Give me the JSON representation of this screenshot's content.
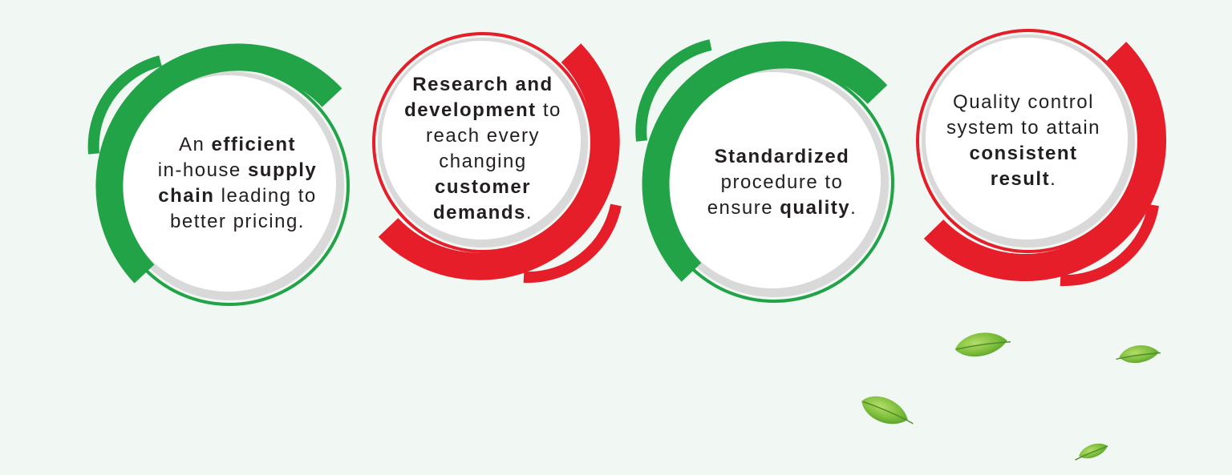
{
  "colors": {
    "background": "#f1f7f3",
    "green": "#22a348",
    "red": "#e61e2a",
    "circle_fill": "#ffffff",
    "circle_shadow": "#d9d9d9",
    "text": "#231f20",
    "leaf_light": "#8cc63f",
    "leaf_dark": "#4a9a2a"
  },
  "features": [
    {
      "theme": "green",
      "text": {
        "l1_a": "An ",
        "l1_b": "efficient",
        "l2_a": "in-house ",
        "l2_b": "supply",
        "l3_a": "chain",
        "l3_b": " leading to",
        "l4_a": "better pricing."
      }
    },
    {
      "theme": "red",
      "text": {
        "l1_a": "Research and",
        "l2_a": "development",
        "l2_b": " to",
        "l3_a": "reach every",
        "l4_a": "changing",
        "l5_a": "customer",
        "l6_a": "demands",
        "l6_b": "."
      }
    },
    {
      "theme": "green",
      "text": {
        "l1_a": "Standardized",
        "l2_a": "procedure to",
        "l3_a": "ensure ",
        "l3_b": "quality",
        "l3_c": "."
      }
    },
    {
      "theme": "red",
      "text": {
        "l1_a": "Quality control",
        "l2_a": "system to attain",
        "l3_a": "consistent",
        "l4_a": "result",
        "l4_b": "."
      }
    }
  ],
  "decorations": {
    "leaf_icon": "leaf-icon"
  }
}
